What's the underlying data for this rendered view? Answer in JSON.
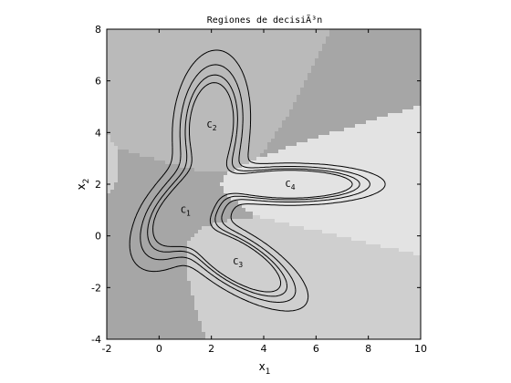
{
  "chart_data": {
    "type": "contour",
    "title": "Regiones de decisiÃ³n",
    "xlabel": {
      "base": "x",
      "sub": "1"
    },
    "ylabel": {
      "base": "x",
      "sub": "2"
    },
    "xlim": [
      -2,
      10
    ],
    "ylim": [
      -4,
      8
    ],
    "xticks": [
      -2,
      0,
      2,
      4,
      6,
      8,
      10
    ],
    "yticks": [
      -4,
      -2,
      0,
      2,
      4,
      6,
      8
    ],
    "grid": false,
    "region_colors": [
      "#a6a6a6",
      "#bababa",
      "#cfcfcf",
      "#e3e3e3"
    ],
    "contour_color": "#000000",
    "classes": [
      {
        "base": "C",
        "sub": "1",
        "mean": [
          1,
          1
        ],
        "cov": [
          [
            0.8,
            0.5
          ],
          [
            0.5,
            1.0
          ]
        ],
        "region_shade": 0
      },
      {
        "base": "C",
        "sub": "2",
        "mean": [
          2,
          4.3
        ],
        "cov": [
          [
            0.4,
            0.1
          ],
          [
            0.1,
            1.5
          ]
        ],
        "region_shade": 1
      },
      {
        "base": "C",
        "sub": "3",
        "mean": [
          3,
          -1
        ],
        "cov": [
          [
            1.2,
            -0.6
          ],
          [
            -0.6,
            0.6
          ]
        ],
        "region_shade": 2
      },
      {
        "base": "C",
        "sub": "4",
        "mean": [
          5,
          2
        ],
        "cov": [
          [
            2.0,
            0.0
          ],
          [
            0.0,
            0.1
          ]
        ],
        "region_shade": 3
      }
    ],
    "contour_levels": [
      0.3,
      0.8,
      1.4,
      2.0
    ]
  }
}
